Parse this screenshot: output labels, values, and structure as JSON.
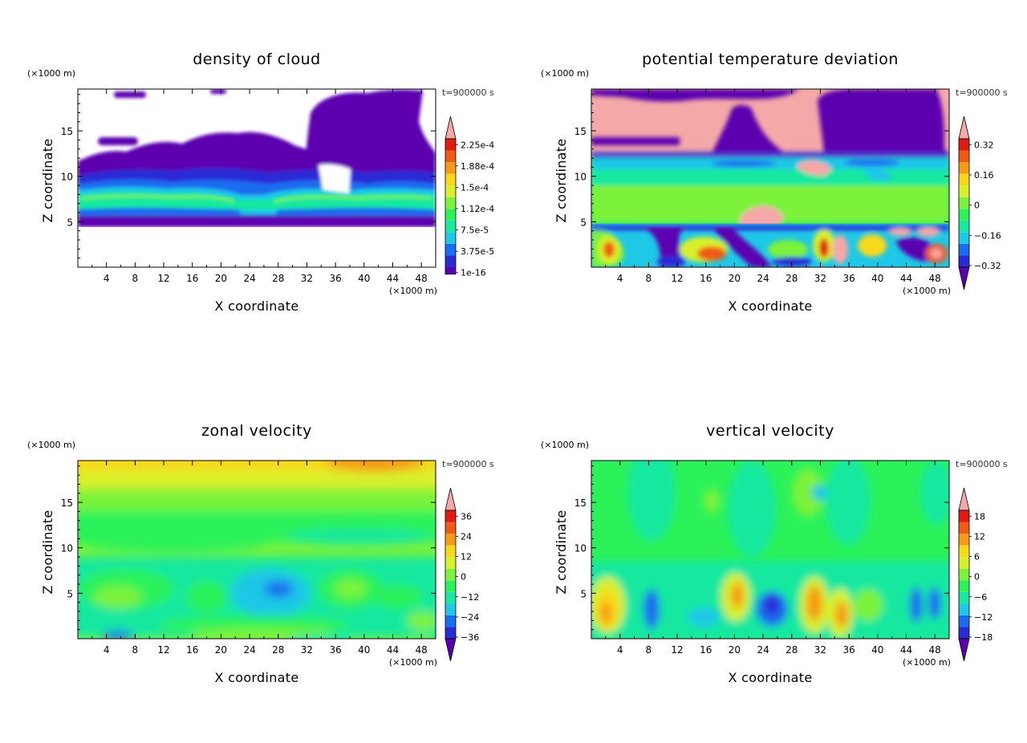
{
  "chart_data": [
    {
      "type": "heatmap",
      "title": "density of cloud",
      "xlabel": "X coordinate",
      "ylabel": "Z coordinate",
      "x_unit": "(×1000 m)",
      "y_unit": "(×1000 m)",
      "time_label": "t=900000 s",
      "xlim": [
        0,
        50
      ],
      "ylim": [
        0,
        19.6
      ],
      "x_ticks": [
        "4",
        "8",
        "12",
        "16",
        "20",
        "24",
        "28",
        "32",
        "36",
        "40",
        "44",
        "48"
      ],
      "y_ticks": [
        "5",
        "10",
        "15"
      ],
      "colorbar_labels": [
        "1e-16",
        "3.75e-5",
        "7.5e-5",
        "1.12e-4",
        "1.5e-4",
        "1.88e-4",
        "2.25e-4"
      ],
      "colorbar_colors": [
        "#5b00b0",
        "#2b2bd6",
        "#1a6cf0",
        "#1fc8e6",
        "#18e8a0",
        "#2cf25a",
        "#7cf23a",
        "#d8f02a",
        "#f8d81a",
        "#f89a18",
        "#f05a14",
        "#e01a14",
        "#f4a8a8"
      ],
      "colorbar_arrows": {
        "top": true,
        "bottom": false
      },
      "description_field": "cloud density; zero (white) outside cloud layers; dense band between z=5 and z=9, cloud tops up to z=19"
    },
    {
      "type": "heatmap",
      "title": "potential temperature deviation",
      "xlabel": "X coordinate",
      "ylabel": "Z coordinate",
      "x_unit": "(×1000 m)",
      "y_unit": "(×1000 m)",
      "time_label": "t=900000 s",
      "xlim": [
        0,
        50
      ],
      "ylim": [
        0,
        19.6
      ],
      "x_ticks": [
        "4",
        "8",
        "12",
        "16",
        "20",
        "24",
        "28",
        "32",
        "36",
        "40",
        "44",
        "48"
      ],
      "y_ticks": [
        "5",
        "10",
        "15"
      ],
      "colorbar_labels": [
        "−0.32",
        "−0.16",
        "0",
        "0.16",
        "0.32"
      ],
      "colorbar_colors": [
        "#5b00b0",
        "#2b2bd6",
        "#1a6cf0",
        "#1fc8e6",
        "#18e8a0",
        "#2cf25a",
        "#7cf23a",
        "#d8f02a",
        "#f8d81a",
        "#f89a18",
        "#f05a14",
        "#e01a14",
        "#f4a8a8"
      ],
      "colorbar_arrows": {
        "top": true,
        "bottom": true
      }
    },
    {
      "type": "heatmap",
      "title": "zonal velocity",
      "xlabel": "X coordinate",
      "ylabel": "Z coordinate",
      "x_unit": "(×1000 m)",
      "y_unit": "(×1000 m)",
      "time_label": "t=900000 s",
      "xlim": [
        0,
        50
      ],
      "ylim": [
        0,
        19.6
      ],
      "x_ticks": [
        "4",
        "8",
        "12",
        "16",
        "20",
        "24",
        "28",
        "32",
        "36",
        "40",
        "44",
        "48"
      ],
      "y_ticks": [
        "5",
        "10",
        "15"
      ],
      "colorbar_labels": [
        "−36",
        "−24",
        "−12",
        "0",
        "12",
        "24",
        "36"
      ],
      "colorbar_colors": [
        "#5b00b0",
        "#2b2bd6",
        "#1a6cf0",
        "#1fc8e6",
        "#18e8a0",
        "#2cf25a",
        "#7cf23a",
        "#d8f02a",
        "#f8d81a",
        "#f89a18",
        "#f05a14",
        "#e01a14",
        "#f4a8a8"
      ],
      "colorbar_arrows": {
        "top": true,
        "bottom": true
      }
    },
    {
      "type": "heatmap",
      "title": "vertical velocity",
      "xlabel": "X coordinate",
      "ylabel": "Z coordinate",
      "x_unit": "(×1000 m)",
      "y_unit": "(×1000 m)",
      "time_label": "t=900000 s",
      "xlim": [
        0,
        50
      ],
      "ylim": [
        0,
        19.6
      ],
      "x_ticks": [
        "4",
        "8",
        "12",
        "16",
        "20",
        "24",
        "28",
        "32",
        "36",
        "40",
        "44",
        "48"
      ],
      "y_ticks": [
        "5",
        "10",
        "15"
      ],
      "colorbar_labels": [
        "−18",
        "−12",
        "−6",
        "0",
        "6",
        "12",
        "18"
      ],
      "colorbar_colors": [
        "#5b00b0",
        "#2b2bd6",
        "#1a6cf0",
        "#1fc8e6",
        "#18e8a0",
        "#2cf25a",
        "#7cf23a",
        "#d8f02a",
        "#f8d81a",
        "#f89a18",
        "#f05a14",
        "#e01a14",
        "#f4a8a8"
      ],
      "colorbar_arrows": {
        "top": true,
        "bottom": true
      }
    }
  ]
}
